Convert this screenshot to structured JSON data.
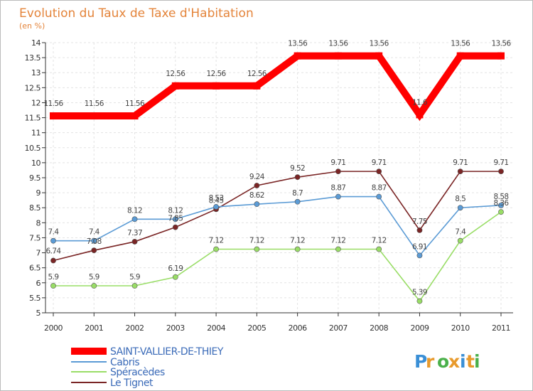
{
  "chart_data": {
    "type": "line",
    "title": "Evolution du Taux de Taxe d'Habitation",
    "subtitle": "(en %)",
    "ylim": [
      5,
      14
    ],
    "yticks": [
      "5",
      "5.5",
      "6",
      "6.5",
      "7",
      "7.5",
      "8",
      "8.5",
      "9",
      "9.5",
      "10",
      "10.5",
      "11",
      "11.5",
      "12",
      "12.5",
      "13",
      "13.5",
      "14"
    ],
    "grid": true,
    "legend_position": "bottom-left",
    "categories": [
      "2000",
      "2001",
      "2002",
      "2003",
      "2004",
      "2005",
      "2006",
      "2007",
      "2008",
      "2009",
      "2010",
      "2011"
    ],
    "series": [
      {
        "name": "SAINT-VALLIER-DE-THIEY",
        "color": "#ff0000",
        "values": [
          11.56,
          11.56,
          11.56,
          12.56,
          12.56,
          12.56,
          13.56,
          13.56,
          13.56,
          11.6,
          13.56,
          13.56
        ],
        "labels": [
          "11.56",
          "11.56",
          "11.56",
          "12.56",
          "12.56",
          "12.56",
          "13.56",
          "13.56",
          "13.56",
          "11.6",
          "13.56",
          "13.56"
        ]
      },
      {
        "name": "Cabris",
        "color": "#5b9bd5",
        "values": [
          7.4,
          7.4,
          8.12,
          8.12,
          8.53,
          8.62,
          8.7,
          8.87,
          8.87,
          6.91,
          8.5,
          8.58
        ],
        "labels": [
          "7.4",
          "7.4",
          "8.12",
          "8.12",
          "8.53",
          "8.62",
          "8.7",
          "8.87",
          "8.87",
          "6.91",
          "8.5",
          "8.58"
        ]
      },
      {
        "name": "Spéracèdes",
        "color": "#99dd66",
        "values": [
          5.9,
          5.9,
          5.9,
          6.19,
          7.12,
          7.12,
          7.12,
          7.12,
          7.12,
          5.39,
          7.4,
          8.36
        ],
        "labels": [
          "5.9",
          "5.9",
          "5.9",
          "6.19",
          "7.12",
          "7.12",
          "7.12",
          "7.12",
          "7.12",
          "5.39",
          "7.4",
          "8.36"
        ]
      },
      {
        "name": "Le Tignet",
        "color": "#7a2525",
        "values": [
          6.74,
          7.08,
          7.37,
          7.85,
          8.45,
          9.24,
          9.52,
          9.71,
          9.71,
          7.75,
          9.71,
          9.71
        ],
        "labels": [
          "6.74",
          "7.08",
          "7.37",
          "7.85",
          "8.45",
          "9.24",
          "9.52",
          "9.71",
          "9.71",
          "7.75",
          "9.71",
          "9.71"
        ]
      }
    ]
  },
  "brand": {
    "text": "Proxiti",
    "letters": [
      "P",
      "r",
      "o",
      "x",
      "i",
      "t",
      "i"
    ],
    "colors": [
      "#3a8fd6",
      "#e89a2c",
      "#4bb04b",
      "#e89a2c",
      "#3a8fd6",
      "#e89a2c",
      "#4bb04b"
    ]
  }
}
